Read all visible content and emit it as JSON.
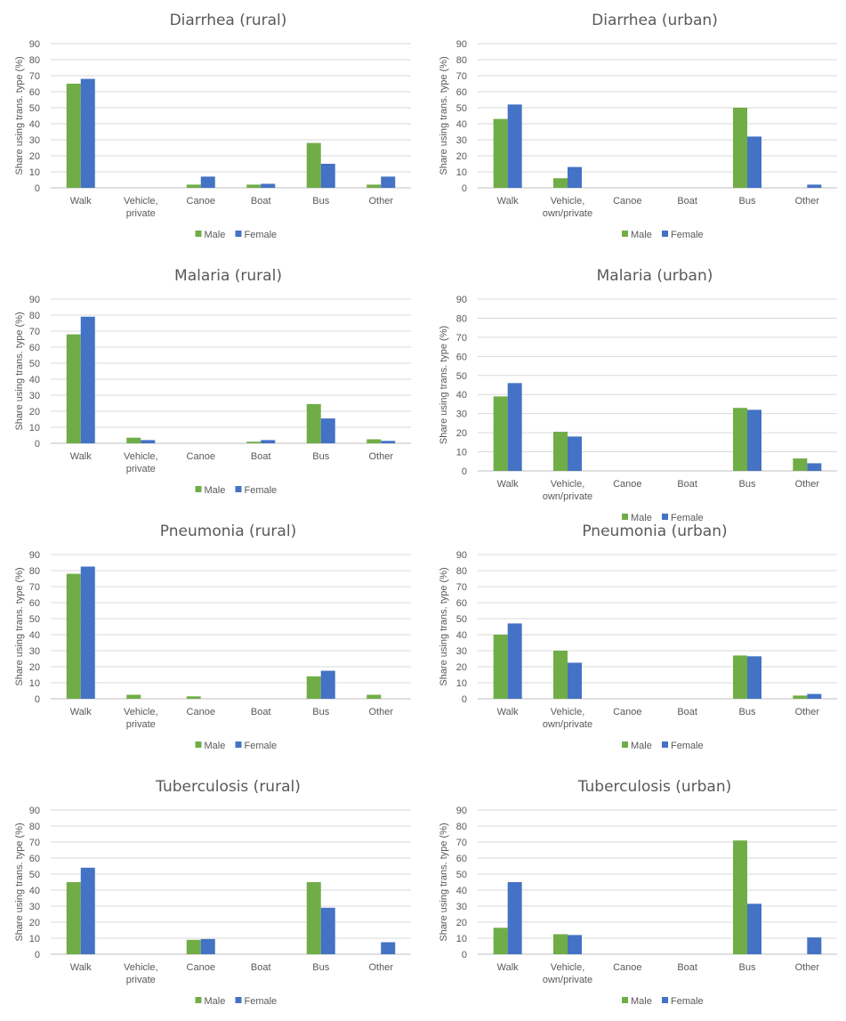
{
  "colors": {
    "male": "#70AD47",
    "female": "#4472C4",
    "grid": "#D9D9D9",
    "axis": "#BFBFBF",
    "text": "#595959"
  },
  "legend": {
    "male": "Male",
    "female": "Female"
  },
  "chart_data": [
    {
      "type": "bar",
      "title": "Diarrhea (rural)",
      "ylabel": "Share using trans. type (%)",
      "ylim": [
        0,
        90
      ],
      "yticks": [
        0,
        10,
        20,
        30,
        40,
        50,
        60,
        70,
        80,
        90
      ],
      "categories": [
        "Walk",
        "Vehicle,\nprivate",
        "Canoe",
        "Boat",
        "Bus",
        "Other"
      ],
      "series": [
        {
          "name": "Male",
          "values": [
            65,
            0,
            2,
            2,
            28,
            2
          ]
        },
        {
          "name": "Female",
          "values": [
            68,
            0,
            7,
            2.5,
            15,
            7
          ]
        }
      ]
    },
    {
      "type": "bar",
      "title": "Diarrhea (urban)",
      "ylabel": "Share using trans. type (%)",
      "ylim": [
        0,
        90
      ],
      "yticks": [
        0,
        10,
        20,
        30,
        40,
        50,
        60,
        70,
        80,
        90
      ],
      "categories": [
        "Walk",
        "Vehicle,\nown/private",
        "Canoe",
        "Boat",
        "Bus",
        "Other"
      ],
      "series": [
        {
          "name": "Male",
          "values": [
            43,
            6,
            0,
            0,
            50,
            0
          ]
        },
        {
          "name": "Female",
          "values": [
            52,
            13,
            0,
            0,
            32,
            2
          ]
        }
      ]
    },
    {
      "type": "bar",
      "title": "Malaria (rural)",
      "ylabel": "Share using trans. type (%)",
      "ylim": [
        0,
        90
      ],
      "yticks": [
        0,
        10,
        20,
        30,
        40,
        50,
        60,
        70,
        80,
        90
      ],
      "categories": [
        "Walk",
        "Vehicle,\nprivate",
        "Canoe",
        "Boat",
        "Bus",
        "Other"
      ],
      "series": [
        {
          "name": "Male",
          "values": [
            68,
            3.5,
            0,
            1,
            24.5,
            2.5
          ]
        },
        {
          "name": "Female",
          "values": [
            79,
            2,
            0,
            2,
            15.5,
            1.5
          ]
        }
      ]
    },
    {
      "type": "bar",
      "title": "Malaria (urban)",
      "ylabel": "Share using trans. type (%)",
      "ylim": [
        0,
        90
      ],
      "yticks": [
        0,
        10,
        20,
        30,
        40,
        50,
        60,
        70,
        80,
        90
      ],
      "categories": [
        "Walk",
        "Vehicle,\nown/private",
        "Canoe",
        "Boat",
        "Bus",
        "Other"
      ],
      "series": [
        {
          "name": "Male",
          "values": [
            39,
            20.5,
            0,
            0,
            33,
            6.5
          ]
        },
        {
          "name": "Female",
          "values": [
            46,
            18,
            0,
            0,
            32,
            4
          ]
        }
      ]
    },
    {
      "type": "bar",
      "title": "Pneumonia (rural)",
      "ylabel": "Share using trans. type (%)",
      "ylim": [
        0,
        90
      ],
      "yticks": [
        0,
        10,
        20,
        30,
        40,
        50,
        60,
        70,
        80,
        90
      ],
      "categories": [
        "Walk",
        "Vehicle,\nprivate",
        "Canoe",
        "Boat",
        "Bus",
        "Other"
      ],
      "series": [
        {
          "name": "Male",
          "values": [
            78,
            2.5,
            1.5,
            0,
            14,
            2.5
          ]
        },
        {
          "name": "Female",
          "values": [
            82.5,
            0,
            0,
            0,
            17.5,
            0
          ]
        }
      ]
    },
    {
      "type": "bar",
      "title": "Pneumonia (urban)",
      "ylabel": "Share using trans. type (%)",
      "ylim": [
        0,
        90
      ],
      "yticks": [
        0,
        10,
        20,
        30,
        40,
        50,
        60,
        70,
        80,
        90
      ],
      "categories": [
        "Walk",
        "Vehicle,\nown/private",
        "Canoe",
        "Boat",
        "Bus",
        "Other"
      ],
      "series": [
        {
          "name": "Male",
          "values": [
            40,
            30,
            0,
            0,
            27,
            2
          ]
        },
        {
          "name": "Female",
          "values": [
            47,
            22.5,
            0,
            0,
            26.5,
            3
          ]
        }
      ]
    },
    {
      "type": "bar",
      "title": "Tuberculosis (rural)",
      "ylabel": "Share using trans. type (%)",
      "ylim": [
        0,
        90
      ],
      "yticks": [
        0,
        10,
        20,
        30,
        40,
        50,
        60,
        70,
        80,
        90
      ],
      "categories": [
        "Walk",
        "Vehicle,\nprivate",
        "Canoe",
        "Boat",
        "Bus",
        "Other"
      ],
      "series": [
        {
          "name": "Male",
          "values": [
            45,
            0,
            9,
            0,
            45,
            0
          ]
        },
        {
          "name": "Female",
          "values": [
            54,
            0,
            9.5,
            0,
            29,
            7.5
          ]
        }
      ]
    },
    {
      "type": "bar",
      "title": "Tuberculosis (urban)",
      "ylabel": "Share using trans. type (%)",
      "ylim": [
        0,
        90
      ],
      "yticks": [
        0,
        10,
        20,
        30,
        40,
        50,
        60,
        70,
        80,
        90
      ],
      "categories": [
        "Walk",
        "Vehicle,\nown/private",
        "Canoe",
        "Boat",
        "Bus",
        "Other"
      ],
      "series": [
        {
          "name": "Male",
          "values": [
            16.5,
            12.5,
            0,
            0,
            71,
            0
          ]
        },
        {
          "name": "Female",
          "values": [
            45,
            12,
            0,
            0,
            31.5,
            10.5
          ]
        }
      ]
    }
  ]
}
